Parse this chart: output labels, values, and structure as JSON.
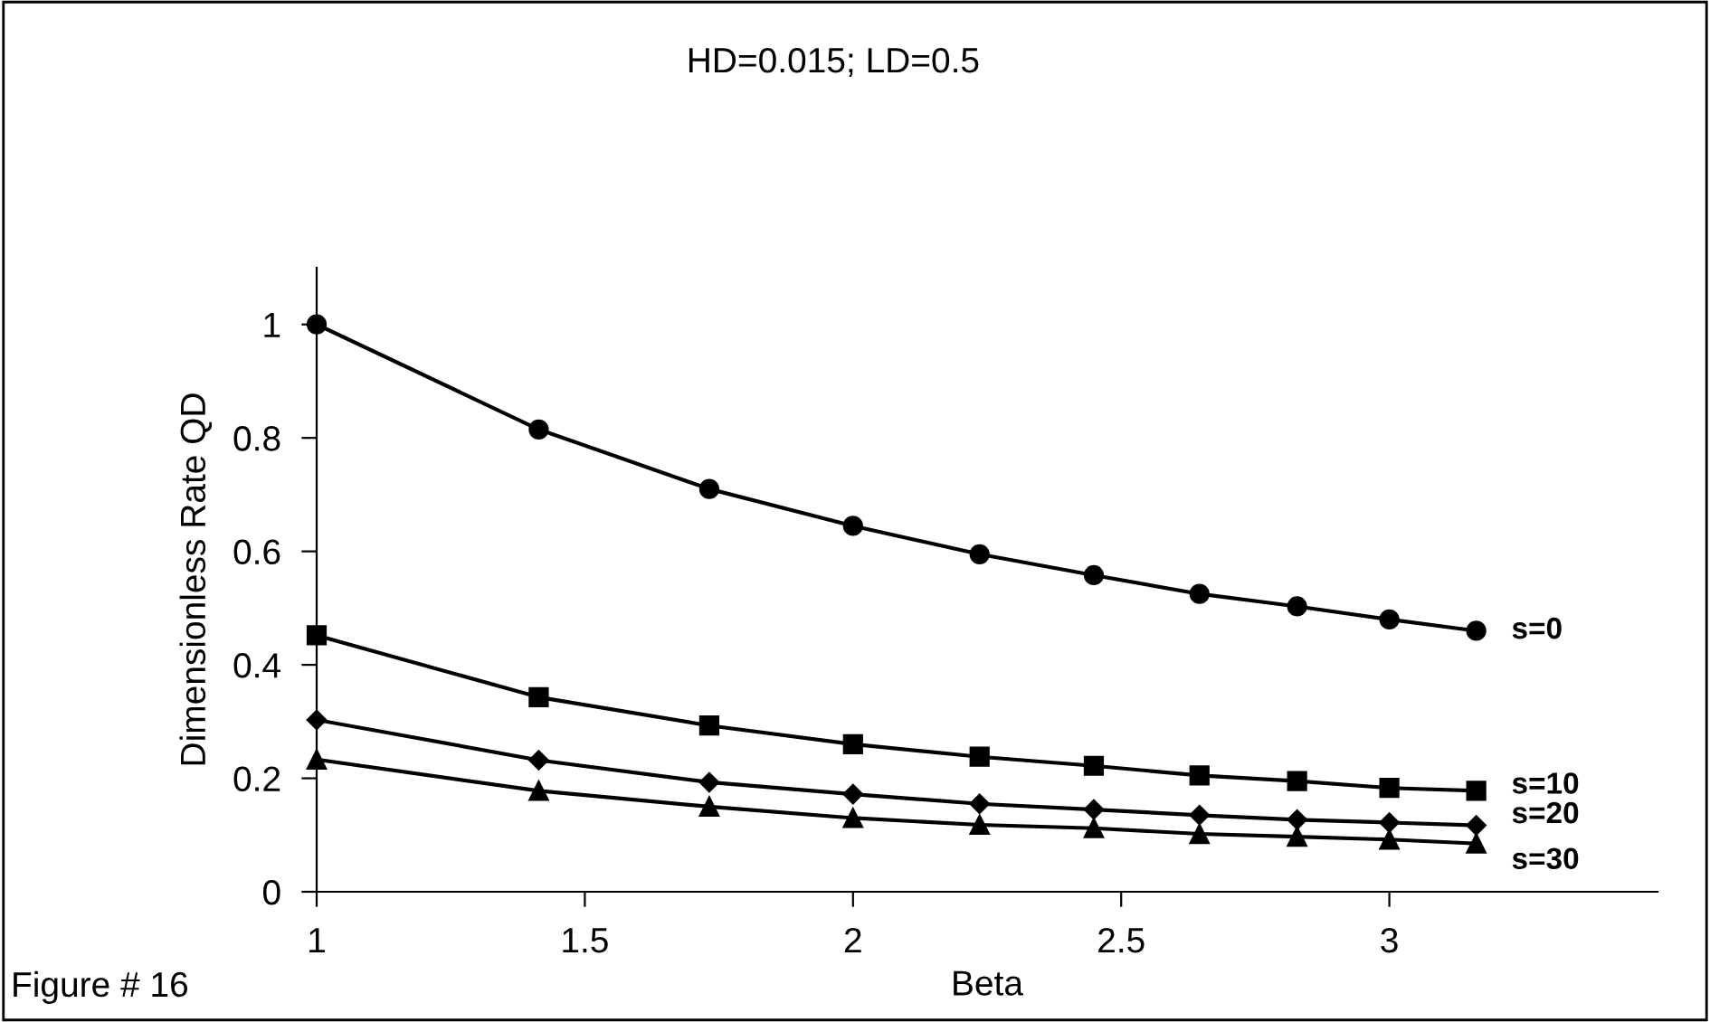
{
  "chart_data": {
    "type": "line",
    "title": "HD=0.015; LD=0.5",
    "xlabel": "Beta",
    "ylabel": "Dimensionless Rate QD",
    "x": [
      1,
      1.414,
      1.732,
      2,
      2.236,
      2.449,
      2.646,
      2.828,
      3,
      3.162
    ],
    "xlim": [
      1,
      3.5
    ],
    "xticks": [
      1,
      1.5,
      2,
      2.5,
      3
    ],
    "ylim": [
      0,
      1.1
    ],
    "yticks": [
      0,
      0.2,
      0.4,
      0.6,
      0.8,
      1
    ],
    "grid": false,
    "legend": false,
    "line_style": "solid",
    "series": [
      {
        "name": "s=0",
        "color": "#000000",
        "marker": "circle",
        "values": [
          1,
          0.815,
          0.71,
          0.645,
          0.595,
          0.558,
          0.525,
          0.503,
          0.48,
          0.46
        ]
      },
      {
        "name": "s=10",
        "color": "#000000",
        "marker": "square",
        "values": [
          0.452,
          0.343,
          0.293,
          0.26,
          0.238,
          0.222,
          0.205,
          0.195,
          0.183,
          0.178
        ]
      },
      {
        "name": "s=20",
        "color": "#000000",
        "marker": "diamond",
        "values": [
          0.303,
          0.232,
          0.193,
          0.172,
          0.155,
          0.145,
          0.135,
          0.127,
          0.122,
          0.117
        ]
      },
      {
        "name": "s=30",
        "color": "#000000",
        "marker": "triangle",
        "values": [
          0.233,
          0.178,
          0.15,
          0.13,
          0.118,
          0.112,
          0.102,
          0.097,
          0.092,
          0.085
        ]
      }
    ],
    "annotations": [
      "Figure # 16"
    ]
  }
}
